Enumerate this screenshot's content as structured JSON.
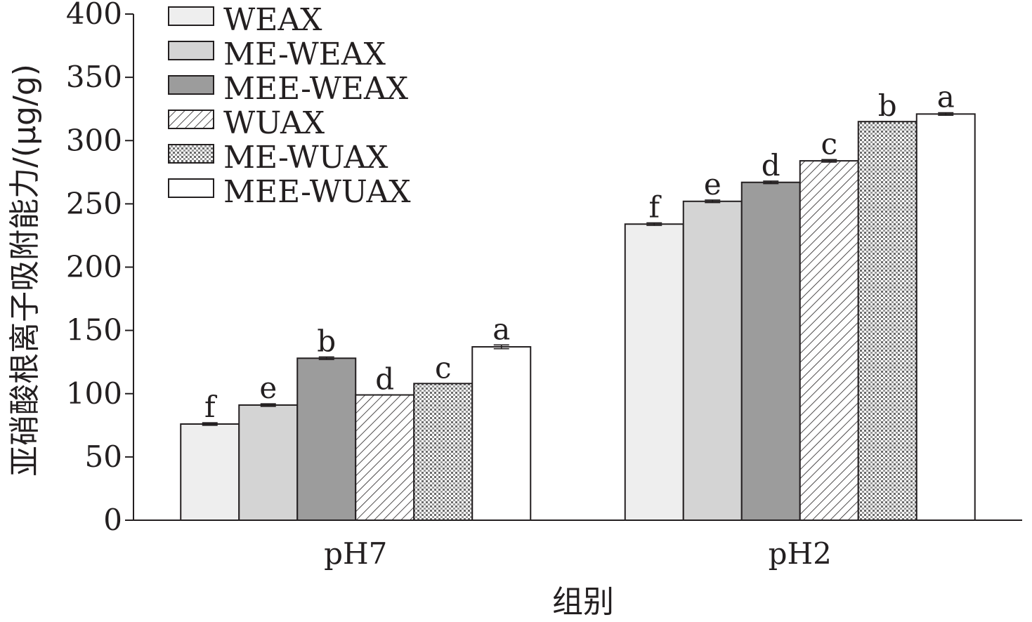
{
  "chart_data": {
    "type": "bar",
    "title": "",
    "xlabel": "组别",
    "ylabel": "亚硝酸根离子吸附能力/(μg/g)",
    "ylim": [
      0,
      400
    ],
    "yticks": [
      0,
      50,
      100,
      150,
      200,
      250,
      300,
      350,
      400
    ],
    "categories": [
      "pH7",
      "pH2"
    ],
    "legend_position": "top-left",
    "grid": false,
    "series": [
      {
        "name": "WEAX",
        "fill": "solid",
        "color": "#eeeeee",
        "values": [
          76,
          234
        ],
        "errors": [
          1,
          1
        ],
        "letters": [
          "f",
          "f"
        ]
      },
      {
        "name": "ME-WEAX",
        "fill": "solid",
        "color": "#d4d4d4",
        "values": [
          91,
          252
        ],
        "errors": [
          1,
          1
        ],
        "letters": [
          "e",
          "e"
        ]
      },
      {
        "name": "MEE-WEAX",
        "fill": "solid",
        "color": "#9c9c9c",
        "values": [
          128,
          267
        ],
        "errors": [
          1,
          1
        ],
        "letters": [
          "b",
          "d"
        ]
      },
      {
        "name": "WUAX",
        "fill": "diagonal-hatch",
        "color": "#ffffff",
        "values": [
          99,
          284
        ],
        "errors": [
          0,
          1
        ],
        "letters": [
          "d",
          "c"
        ]
      },
      {
        "name": "ME-WUAX",
        "fill": "dotted",
        "color": "#ffffff",
        "values": [
          108,
          315
        ],
        "errors": [
          0,
          0
        ],
        "letters": [
          "c",
          "b"
        ]
      },
      {
        "name": "MEE-WUAX",
        "fill": "solid",
        "color": "#ffffff",
        "values": [
          137,
          321
        ],
        "errors": [
          1.5,
          1
        ],
        "letters": [
          "a",
          "a"
        ]
      }
    ]
  }
}
